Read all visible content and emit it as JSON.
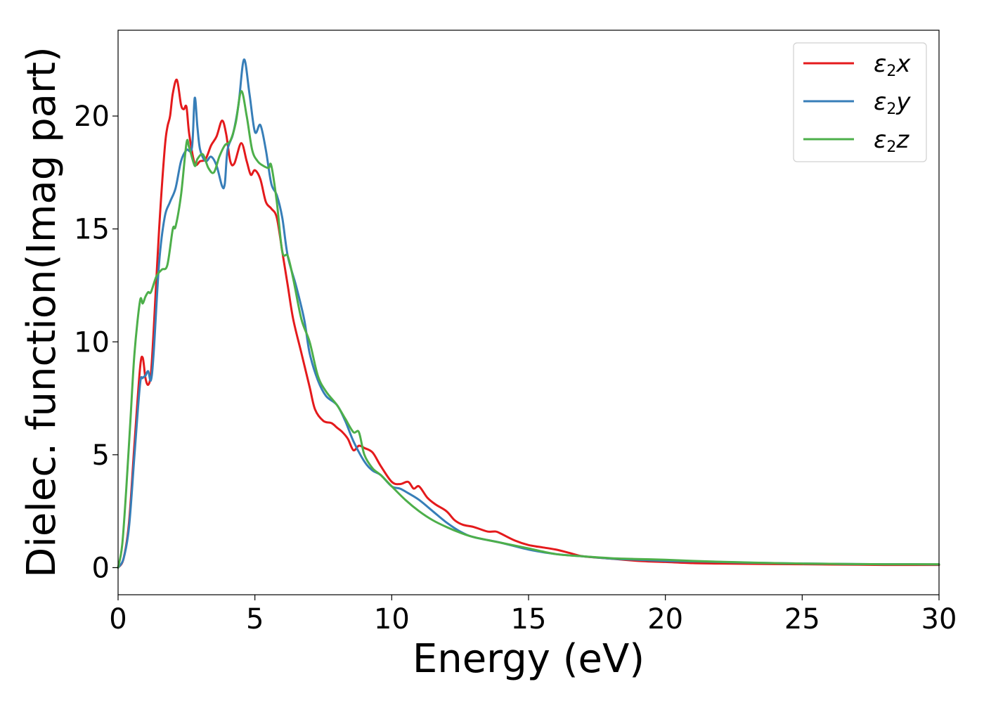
{
  "chart_data": {
    "type": "line",
    "xlabel": "Energy (eV)",
    "ylabel": "Dielec. function(Imag part)",
    "xlim": [
      0,
      30
    ],
    "ylim": [
      -1.2,
      23.8
    ],
    "xticks": [
      0,
      5,
      10,
      15,
      20,
      25,
      30
    ],
    "yticks": [
      0,
      5,
      10,
      15,
      20
    ],
    "grid": false,
    "legend_position": "top-right",
    "series": [
      {
        "name": "ε₂x",
        "legend_base": "ε",
        "legend_sub": "2",
        "legend_var": "x",
        "color": "#e41a1c",
        "x": [
          0,
          0.2,
          0.4,
          0.6,
          0.8,
          0.9,
          1.0,
          1.1,
          1.2,
          1.3,
          1.5,
          1.7,
          1.8,
          1.9,
          2.0,
          2.15,
          2.3,
          2.4,
          2.5,
          2.6,
          2.8,
          3.0,
          3.2,
          3.4,
          3.6,
          3.8,
          3.95,
          4.1,
          4.25,
          4.5,
          4.7,
          4.85,
          5.0,
          5.2,
          5.4,
          5.6,
          5.8,
          6.0,
          6.2,
          6.4,
          6.7,
          7.0,
          7.2,
          7.5,
          7.8,
          8.0,
          8.2,
          8.4,
          8.6,
          8.8,
          9.0,
          9.3,
          9.6,
          10.0,
          10.3,
          10.6,
          10.8,
          11.0,
          11.3,
          11.6,
          12.0,
          12.3,
          12.6,
          13.0,
          13.5,
          13.8,
          14.0,
          14.5,
          15.0,
          15.5,
          16.0,
          16.5,
          17.0,
          18.0,
          19.0,
          20.0,
          21.0,
          22.0,
          23.0,
          24.0,
          25.0,
          26.0,
          27.0,
          28.0,
          29.0,
          30.0
        ],
        "y": [
          0,
          0.4,
          2.0,
          5.5,
          8.8,
          9.3,
          8.4,
          8.1,
          8.6,
          10.5,
          15.0,
          18.5,
          19.5,
          20.0,
          21.0,
          21.6,
          20.5,
          20.3,
          20.4,
          19.2,
          17.9,
          18.0,
          18.1,
          18.7,
          19.1,
          19.8,
          19.2,
          18.0,
          17.9,
          18.8,
          18.0,
          17.4,
          17.6,
          17.2,
          16.2,
          15.9,
          15.5,
          14.0,
          12.5,
          11.0,
          9.5,
          8.0,
          7.0,
          6.5,
          6.4,
          6.2,
          6.0,
          5.7,
          5.2,
          5.4,
          5.3,
          5.1,
          4.5,
          3.8,
          3.7,
          3.8,
          3.5,
          3.6,
          3.1,
          2.8,
          2.5,
          2.1,
          1.9,
          1.8,
          1.6,
          1.6,
          1.5,
          1.2,
          1.0,
          0.9,
          0.8,
          0.65,
          0.5,
          0.4,
          0.3,
          0.25,
          0.2,
          0.18,
          0.17,
          0.16,
          0.15,
          0.14,
          0.13,
          0.12,
          0.12,
          0.12
        ]
      },
      {
        "name": "ε₂y",
        "legend_base": "ε",
        "legend_sub": "2",
        "legend_var": "y",
        "color": "#377eb8",
        "x": [
          0,
          0.2,
          0.4,
          0.6,
          0.8,
          0.9,
          1.0,
          1.1,
          1.2,
          1.3,
          1.5,
          1.7,
          1.9,
          2.1,
          2.3,
          2.5,
          2.7,
          2.8,
          2.9,
          3.0,
          3.2,
          3.4,
          3.6,
          3.8,
          3.9,
          4.0,
          4.2,
          4.4,
          4.6,
          4.8,
          5.0,
          5.2,
          5.4,
          5.6,
          5.8,
          6.0,
          6.2,
          6.5,
          6.8,
          7.0,
          7.3,
          7.6,
          8.0,
          8.3,
          8.6,
          9.0,
          9.3,
          9.6,
          10.0,
          10.3,
          10.6,
          11.0,
          11.5,
          12.0,
          12.5,
          13.0,
          14.0,
          15.0,
          16.0,
          17.0,
          18.0,
          19.0,
          20.0,
          21.0,
          22.0,
          23.0,
          24.0,
          25.0,
          26.0,
          27.0,
          28.0,
          29.0,
          30.0
        ],
        "y": [
          0,
          0.4,
          1.8,
          5.0,
          8.1,
          8.4,
          8.5,
          8.7,
          8.3,
          9.5,
          13.5,
          15.5,
          16.2,
          16.8,
          18.0,
          18.5,
          18.6,
          20.8,
          19.5,
          18.5,
          18.0,
          18.2,
          17.8,
          16.9,
          17.0,
          18.5,
          19.2,
          20.5,
          22.5,
          21.0,
          19.3,
          19.6,
          18.5,
          17.0,
          16.5,
          15.5,
          13.8,
          12.5,
          11.0,
          9.5,
          8.3,
          7.6,
          7.2,
          6.5,
          5.6,
          4.7,
          4.3,
          4.1,
          3.6,
          3.5,
          3.3,
          3.0,
          2.5,
          2.0,
          1.6,
          1.35,
          1.1,
          0.8,
          0.6,
          0.5,
          0.4,
          0.35,
          0.3,
          0.28,
          0.25,
          0.22,
          0.2,
          0.18,
          0.17,
          0.16,
          0.15,
          0.15,
          0.14
        ]
      },
      {
        "name": "ε₂z",
        "legend_base": "ε",
        "legend_sub": "2",
        "legend_var": "z",
        "color": "#4daf4a",
        "x": [
          0,
          0.15,
          0.3,
          0.45,
          0.6,
          0.8,
          0.9,
          1.0,
          1.1,
          1.2,
          1.4,
          1.6,
          1.8,
          2.0,
          2.1,
          2.3,
          2.5,
          2.6,
          2.8,
          2.9,
          3.1,
          3.3,
          3.5,
          3.7,
          3.9,
          4.1,
          4.3,
          4.5,
          4.7,
          4.9,
          5.1,
          5.3,
          5.5,
          5.6,
          5.8,
          6.0,
          6.2,
          6.4,
          6.7,
          7.0,
          7.3,
          7.6,
          8.0,
          8.3,
          8.6,
          8.8,
          9.0,
          9.3,
          9.6,
          10.0,
          10.5,
          11.0,
          11.5,
          12.0,
          12.5,
          13.0,
          14.0,
          15.0,
          16.0,
          17.0,
          18.0,
          19.0,
          20.0,
          21.0,
          22.0,
          23.0,
          24.0,
          25.0,
          26.0,
          27.0,
          28.0,
          29.0,
          30.0
        ],
        "y": [
          0,
          1.0,
          3.5,
          6.5,
          9.5,
          11.8,
          11.7,
          12.0,
          12.2,
          12.2,
          12.9,
          13.2,
          13.4,
          15.0,
          15.1,
          16.5,
          18.8,
          18.6,
          17.8,
          18.1,
          18.3,
          17.7,
          17.5,
          18.2,
          18.7,
          18.9,
          19.7,
          21.1,
          20.0,
          18.5,
          18.0,
          17.8,
          17.7,
          17.8,
          16.2,
          14.0,
          13.8,
          12.8,
          11.0,
          10.0,
          8.5,
          7.8,
          7.2,
          6.6,
          6.0,
          6.0,
          5.0,
          4.4,
          4.1,
          3.6,
          3.0,
          2.5,
          2.1,
          1.8,
          1.55,
          1.35,
          1.1,
          0.85,
          0.6,
          0.5,
          0.42,
          0.38,
          0.35,
          0.3,
          0.26,
          0.23,
          0.2,
          0.18,
          0.17,
          0.16,
          0.15,
          0.15,
          0.15
        ]
      }
    ]
  }
}
